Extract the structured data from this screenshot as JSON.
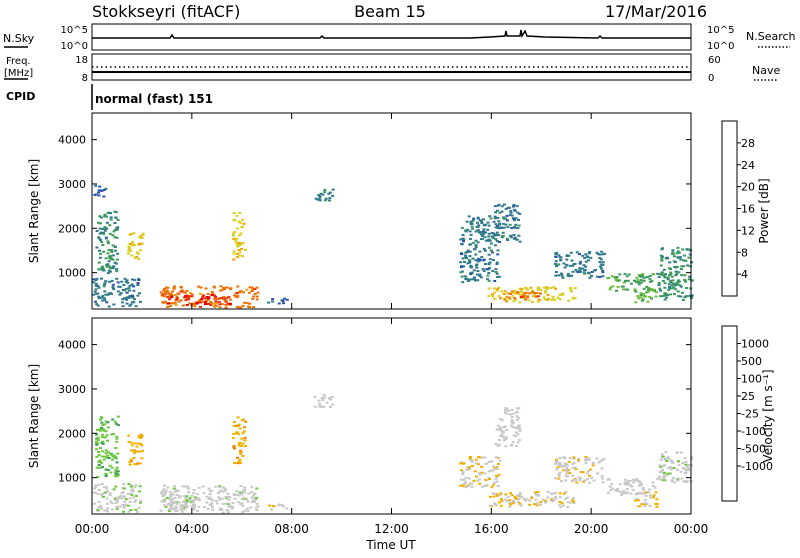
{
  "header": {
    "station": "Stokkseyri (fitACF)",
    "beam": "Beam 15",
    "date": "17/Mar/2016"
  },
  "top_panels": {
    "nsky_label": "N.Sky",
    "nsearch_label": "N.Search",
    "noise_ticks": [
      "10^5",
      "10^0"
    ],
    "freq_label_1": "Freq.",
    "freq_label_2": "[MHz]",
    "freq_ticks": [
      "18",
      "8"
    ],
    "nave_label": "Nave",
    "nave_ticks": [
      "60",
      "0"
    ],
    "cpid_label": "CPID",
    "cpid_value": "normal (fast) 151"
  },
  "colors": {
    "power_scale": [
      "#1a1aff",
      "#2a4fb0",
      "#2f7a8a",
      "#3a9a5a",
      "#6bbf3a",
      "#d8d020",
      "#f0a000",
      "#f07000",
      "#e83010",
      "#e00000"
    ],
    "velocity_scale": [
      "#e00000",
      "#e85010",
      "#f08000",
      "#f0b000",
      "#c8c8c8",
      "#c8c8c8",
      "#6bc83a",
      "#3a9a5a",
      "#2f6aa0",
      "#1a30c0"
    ]
  },
  "chart_data": [
    {
      "type": "heatmap",
      "name": "power",
      "xlabel": "",
      "ylabel": "Slant Range [km]",
      "yticks": [
        "1000",
        "2000",
        "3000",
        "4000"
      ],
      "ylim": [
        180,
        4600
      ],
      "colorbar_label": "Power [dB]",
      "colorbar_ticks": [
        "4",
        "8",
        "12",
        "16",
        "20",
        "24",
        "28"
      ],
      "clim": [
        0,
        32
      ],
      "patches": [
        {
          "t0": 0.0,
          "t1": 1.9,
          "r0": 250,
          "r1": 900,
          "value": 8
        },
        {
          "t0": 0.1,
          "t1": 1.0,
          "r0": 1000,
          "r1": 2400,
          "value": 10
        },
        {
          "t0": 1.4,
          "t1": 2.0,
          "r0": 1300,
          "r1": 2000,
          "value": 18
        },
        {
          "t0": 2.7,
          "t1": 6.6,
          "r0": 230,
          "r1": 720,
          "value": 24
        },
        {
          "t0": 3.0,
          "t1": 5.5,
          "r0": 280,
          "r1": 520,
          "value": 28
        },
        {
          "t0": 5.6,
          "t1": 6.1,
          "r0": 1300,
          "r1": 2400,
          "value": 18
        },
        {
          "t0": 7.0,
          "t1": 7.8,
          "r0": 300,
          "r1": 450,
          "value": 6
        },
        {
          "t0": 8.8,
          "t1": 9.6,
          "r0": 2600,
          "r1": 2900,
          "value": 8
        },
        {
          "t0": 14.7,
          "t1": 16.3,
          "r0": 800,
          "r1": 2300,
          "value": 8
        },
        {
          "t0": 16.1,
          "t1": 17.1,
          "r0": 1700,
          "r1": 2600,
          "value": 8
        },
        {
          "t0": 15.8,
          "t1": 19.3,
          "r0": 350,
          "r1": 700,
          "value": 18
        },
        {
          "t0": 16.6,
          "t1": 18.2,
          "r0": 400,
          "r1": 600,
          "value": 24
        },
        {
          "t0": 18.5,
          "t1": 20.5,
          "r0": 900,
          "r1": 1500,
          "value": 8
        },
        {
          "t0": 20.6,
          "t1": 22.5,
          "r0": 600,
          "r1": 1000,
          "value": 12
        },
        {
          "t0": 21.7,
          "t1": 22.6,
          "r0": 350,
          "r1": 700,
          "value": 14
        },
        {
          "t0": 22.6,
          "t1": 24.0,
          "r0": 400,
          "r1": 1600,
          "value": 10
        },
        {
          "t0": 0.0,
          "t1": 0.5,
          "r0": 2700,
          "r1": 3000,
          "value": 6
        }
      ]
    },
    {
      "type": "heatmap",
      "name": "velocity",
      "xlabel": "Time UT",
      "ylabel": "Slant Range [km]",
      "xticks": [
        "00:00",
        "04:00",
        "08:00",
        "12:00",
        "16:00",
        "20:00",
        "00:00"
      ],
      "xlim": [
        0,
        24
      ],
      "yticks": [
        "1000",
        "2000",
        "3000",
        "4000"
      ],
      "ylim": [
        180,
        4600
      ],
      "colorbar_label": "Velocity [m s⁻¹]",
      "colorbar_ticks": [
        "1000",
        "500",
        "100",
        "25",
        "-25",
        "-100",
        "-500",
        "-1000"
      ],
      "clim": [
        -1200,
        1200
      ],
      "patches": [
        {
          "t0": 0.0,
          "t1": 1.9,
          "r0": 250,
          "r1": 900,
          "value": 150
        },
        {
          "t0": 0.1,
          "t1": 1.0,
          "r0": 1000,
          "r1": 2400,
          "value": 400
        },
        {
          "t0": 1.4,
          "t1": 2.0,
          "r0": 1300,
          "r1": 2000,
          "value": -400
        },
        {
          "t0": 2.7,
          "t1": 6.6,
          "r0": 230,
          "r1": 850,
          "value": 120
        },
        {
          "t0": 3.0,
          "t1": 4.8,
          "r0": 300,
          "r1": 520,
          "value": 60
        },
        {
          "t0": 5.6,
          "t1": 6.1,
          "r0": 1300,
          "r1": 2400,
          "value": -400
        },
        {
          "t0": 7.0,
          "t1": 7.8,
          "r0": 300,
          "r1": 450,
          "value": -150
        },
        {
          "t0": 8.8,
          "t1": 9.6,
          "r0": 2600,
          "r1": 2900,
          "value": 0
        },
        {
          "t0": 14.7,
          "t1": 16.3,
          "r0": 800,
          "r1": 1500,
          "value": -200
        },
        {
          "t0": 16.1,
          "t1": 17.1,
          "r0": 1700,
          "r1": 2600,
          "value": 0
        },
        {
          "t0": 15.8,
          "t1": 19.3,
          "r0": 350,
          "r1": 700,
          "value": -200
        },
        {
          "t0": 18.5,
          "t1": 20.5,
          "r0": 900,
          "r1": 1500,
          "value": -150
        },
        {
          "t0": 20.6,
          "t1": 22.5,
          "r0": 600,
          "r1": 1000,
          "value": 0
        },
        {
          "t0": 21.7,
          "t1": 22.6,
          "r0": 350,
          "r1": 700,
          "value": -250
        },
        {
          "t0": 22.6,
          "t1": 24.0,
          "r0": 900,
          "r1": 1600,
          "value": 150
        }
      ]
    }
  ]
}
